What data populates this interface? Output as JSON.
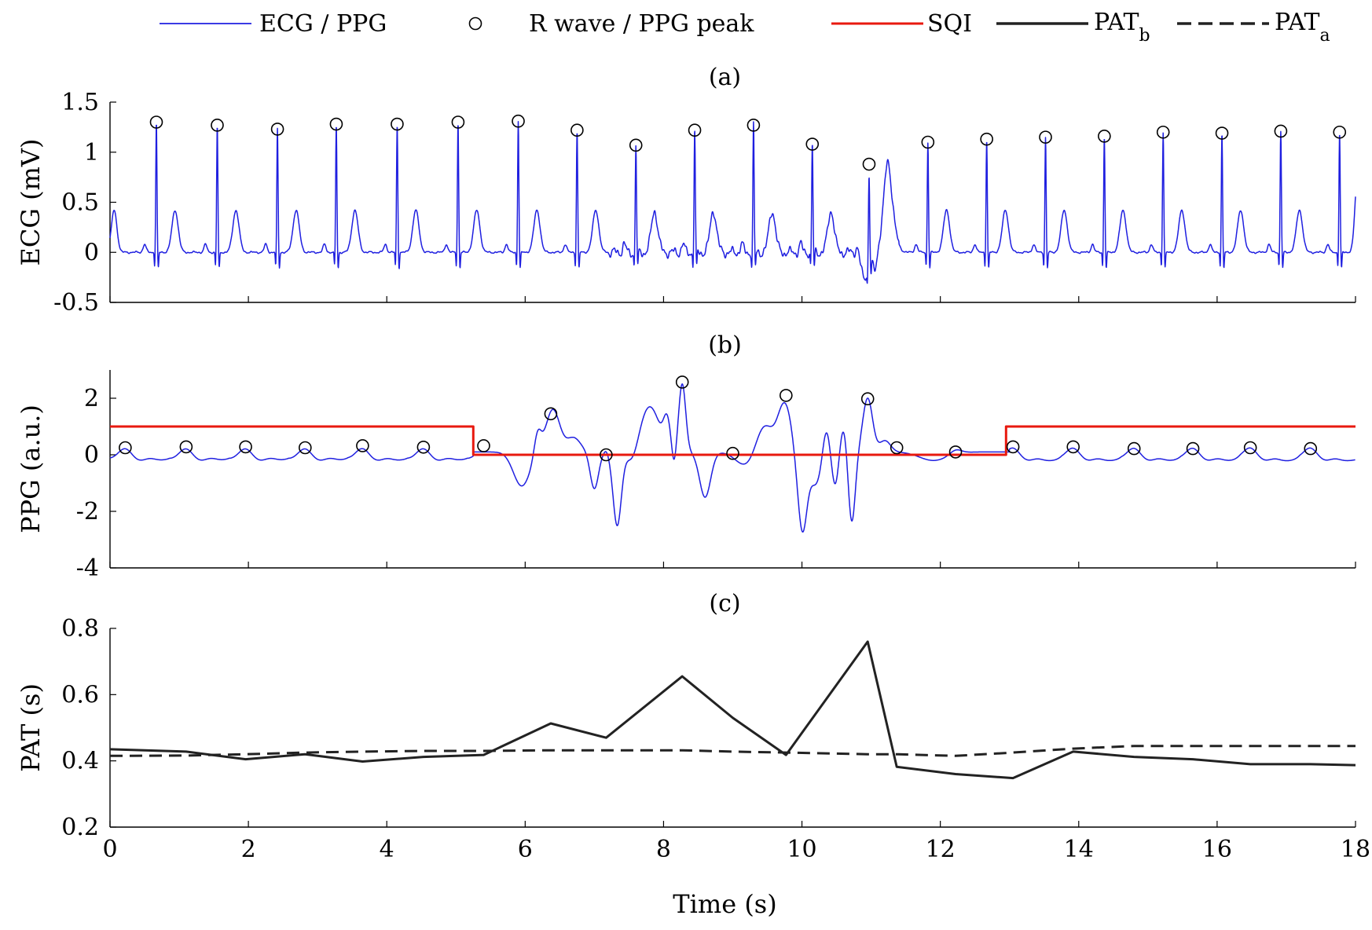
{
  "legend": {
    "items": [
      {
        "label": "ECG / PPG",
        "style": "line",
        "color": "#1f1fe0"
      },
      {
        "label": "R wave / PPG peak",
        "style": "circle",
        "color": "#000000"
      },
      {
        "label": "SQI",
        "style": "line",
        "color": "#e8190f"
      },
      {
        "label": "PAT",
        "sub": "b",
        "style": "solid",
        "color": "#222222"
      },
      {
        "label": "PAT",
        "sub": "a",
        "style": "dashed",
        "color": "#222222"
      }
    ]
  },
  "chart_data": [
    {
      "panel": "(a)",
      "type": "line",
      "ylabel": "ECG (mV)",
      "xlim": [
        0,
        18
      ],
      "ylim": [
        -0.5,
        1.5
      ],
      "yticks": [
        "-0.5",
        "0",
        "0.5",
        "1",
        "1.5"
      ],
      "xticks": [
        0,
        2,
        4,
        6,
        8,
        10,
        12,
        14,
        16,
        18
      ],
      "grid": false,
      "r_peaks": {
        "x": [
          0.67,
          1.55,
          2.42,
          3.27,
          4.15,
          5.03,
          5.9,
          6.75,
          7.6,
          8.45,
          9.3,
          10.15,
          10.97,
          11.82,
          12.67,
          13.52,
          14.37,
          15.22,
          16.07,
          16.92,
          17.77
        ],
        "y": [
          1.3,
          1.27,
          1.23,
          1.28,
          1.28,
          1.3,
          1.31,
          1.22,
          1.07,
          1.22,
          1.27,
          1.08,
          0.88,
          1.1,
          1.13,
          1.15,
          1.16,
          1.2,
          1.19,
          1.21,
          1.2
        ]
      },
      "color": "#1f1fe0"
    },
    {
      "panel": "(b)",
      "type": "line",
      "ylabel": "PPG (a.u.)",
      "xlim": [
        0,
        18
      ],
      "ylim": [
        -4,
        3
      ],
      "yticks": [
        "-4",
        "-2",
        "0",
        "2"
      ],
      "xticks": [
        0,
        2,
        4,
        6,
        8,
        10,
        12,
        14,
        16,
        18
      ],
      "grid": false,
      "ppg_peaks": {
        "x": [
          0.22,
          1.1,
          1.96,
          2.82,
          3.65,
          4.53,
          5.4,
          6.37,
          7.17,
          8.27,
          9.0,
          9.77,
          10.95,
          11.37,
          12.22,
          13.05,
          13.92,
          14.8,
          15.65,
          16.48,
          17.35
        ],
        "y": [
          0.25,
          0.28,
          0.28,
          0.25,
          0.32,
          0.27,
          0.32,
          1.45,
          0.0,
          2.57,
          0.05,
          2.1,
          1.98,
          0.25,
          0.1,
          0.28,
          0.28,
          0.22,
          0.22,
          0.25,
          0.22
        ]
      },
      "sqi": {
        "x": [
          0,
          5.25,
          5.25,
          12.95,
          12.95,
          18
        ],
        "y": [
          1,
          1,
          0,
          0,
          1,
          1
        ],
        "color": "#e8190f"
      },
      "color": "#1f1fe0"
    },
    {
      "panel": "(c)",
      "type": "line",
      "ylabel": "PAT (s)",
      "xlabel": "Time (s)",
      "xlim": [
        0,
        18
      ],
      "ylim": [
        0.2,
        0.8
      ],
      "yticks": [
        "0.2",
        "0.4",
        "0.6",
        "0.8"
      ],
      "xticks": [
        "0",
        "2",
        "4",
        "6",
        "8",
        "10",
        "12",
        "14",
        "16",
        "18"
      ],
      "grid": false,
      "series": [
        {
          "legend": "PAT_b",
          "style": "solid",
          "x": [
            0,
            1.1,
            1.96,
            2.82,
            3.65,
            4.53,
            5.4,
            6.37,
            7.17,
            8.27,
            9.0,
            9.77,
            10.95,
            11.37,
            12.22,
            13.05,
            13.92,
            14.8,
            15.65,
            16.48,
            17.35,
            18
          ],
          "y": [
            0.435,
            0.428,
            0.405,
            0.42,
            0.398,
            0.412,
            0.418,
            0.513,
            0.47,
            0.655,
            0.53,
            0.418,
            0.76,
            0.382,
            0.36,
            0.348,
            0.428,
            0.412,
            0.405,
            0.39,
            0.39,
            0.387
          ]
        },
        {
          "legend": "PAT_a",
          "style": "dashed",
          "x": [
            0,
            1.1,
            1.96,
            2.82,
            3.65,
            4.53,
            5.4,
            6.37,
            7.17,
            8.27,
            9.0,
            9.77,
            10.95,
            11.37,
            12.22,
            13.05,
            13.92,
            14.8,
            15.65,
            16.48,
            17.35,
            18
          ],
          "y": [
            0.415,
            0.416,
            0.42,
            0.425,
            0.428,
            0.43,
            0.43,
            0.432,
            0.432,
            0.432,
            0.428,
            0.425,
            0.42,
            0.42,
            0.415,
            0.425,
            0.437,
            0.445,
            0.445,
            0.445,
            0.445,
            0.445
          ]
        }
      ]
    }
  ]
}
